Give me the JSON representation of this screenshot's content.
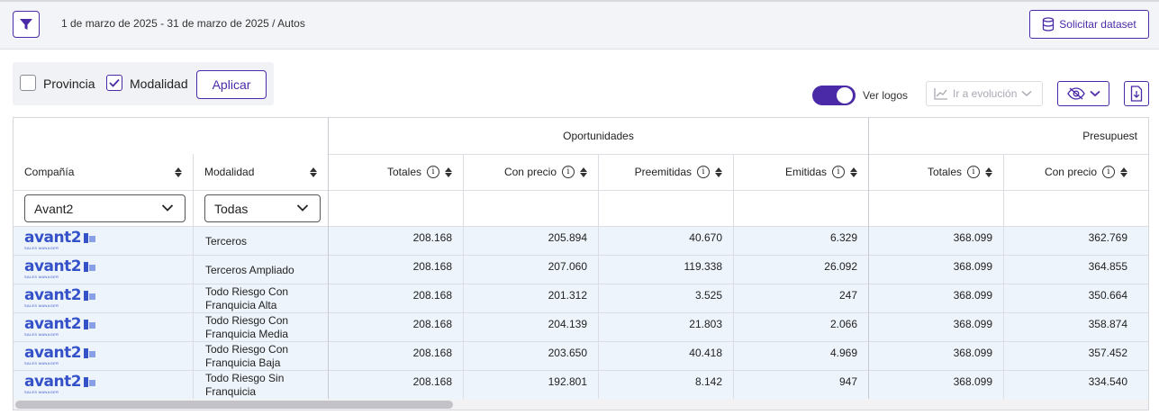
{
  "header": {
    "breadcrumb": "1 de marzo de 2025 - 31 de marzo de 2025 / Autos",
    "dataset_button": "Solicitar dataset"
  },
  "controls": {
    "provincia_label": "Provincia",
    "provincia_checked": false,
    "modalidad_label": "Modalidad",
    "modalidad_checked": true,
    "apply_label": "Aplicar",
    "logos_label": "Ver logos",
    "logos_on": true,
    "evolution_label": "Ir a evolución"
  },
  "colors": {
    "accent": "#4b2aa8",
    "row_bg": "#eef4fb",
    "logo_blue": "#3552c8"
  },
  "table": {
    "groups": {
      "oportunidades": "Oportunidades",
      "presupuestos": "Presupuest"
    },
    "columns": {
      "compania": "Compañía",
      "modalidad": "Modalidad",
      "op_totales": "Totales",
      "op_con_precio": "Con precio",
      "op_preemitidas": "Preemitidas",
      "op_emitidas": "Emitidas",
      "pr_totales": "Totales",
      "pr_con_precio": "Con precio"
    },
    "filters": {
      "compania": "Avant2",
      "modalidad": "Todas"
    },
    "logo_text": "avant2",
    "logo_sub": "SALES MANAGER",
    "rows": [
      {
        "modalidad": "Terceros",
        "op_totales": "208.168",
        "op_con_precio": "205.894",
        "op_preemitidas": "40.670",
        "op_emitidas": "6.329",
        "pr_totales": "368.099",
        "pr_con_precio": "362.769"
      },
      {
        "modalidad": "Terceros Ampliado",
        "op_totales": "208.168",
        "op_con_precio": "207.060",
        "op_preemitidas": "119.338",
        "op_emitidas": "26.092",
        "pr_totales": "368.099",
        "pr_con_precio": "364.855"
      },
      {
        "modalidad": "Todo Riesgo Con Franquicia Alta",
        "op_totales": "208.168",
        "op_con_precio": "201.312",
        "op_preemitidas": "3.525",
        "op_emitidas": "247",
        "pr_totales": "368.099",
        "pr_con_precio": "350.664"
      },
      {
        "modalidad": "Todo Riesgo Con Franquicia Media",
        "op_totales": "208.168",
        "op_con_precio": "204.139",
        "op_preemitidas": "21.803",
        "op_emitidas": "2.066",
        "pr_totales": "368.099",
        "pr_con_precio": "358.874"
      },
      {
        "modalidad": "Todo Riesgo Con Franquicia Baja",
        "op_totales": "208.168",
        "op_con_precio": "203.650",
        "op_preemitidas": "40.418",
        "op_emitidas": "4.969",
        "pr_totales": "368.099",
        "pr_con_precio": "357.452"
      },
      {
        "modalidad": "Todo Riesgo Sin Franquicia",
        "op_totales": "208.168",
        "op_con_precio": "192.801",
        "op_preemitidas": "8.142",
        "op_emitidas": "947",
        "pr_totales": "368.099",
        "pr_con_precio": "334.540"
      }
    ]
  }
}
